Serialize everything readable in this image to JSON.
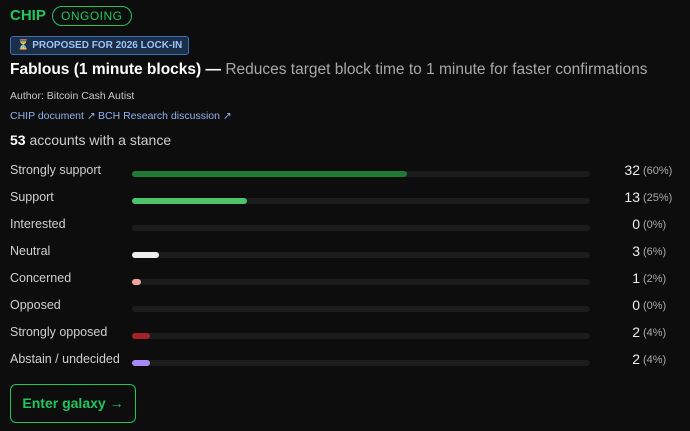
{
  "header": {
    "tag": "CHIP",
    "status": "ONGOING"
  },
  "badge": "⏳ PROPOSED FOR 2026 LOCK-IN",
  "title": {
    "name": "Fablous (1 minute blocks)",
    "separator": "—",
    "description": "Reduces target block time to 1 minute for faster confirmations"
  },
  "author": "Author: Bitcoin Cash Autist",
  "links": [
    "CHIP document ↗",
    "BCH Research discussion ↗"
  ],
  "summary": {
    "count": 53,
    "text": "accounts with a stance"
  },
  "stances": [
    {
      "label": "Strongly support",
      "count": 32,
      "percent": 60,
      "percent_label": "(60%)",
      "color": "#1f7a35"
    },
    {
      "label": "Support",
      "count": 13,
      "percent": 25,
      "percent_label": "(25%)",
      "color": "#4cc26a"
    },
    {
      "label": "Interested",
      "count": 0,
      "percent": 0,
      "percent_label": "(0%)"
    },
    {
      "label": "Neutral",
      "count": 3,
      "percent": 6,
      "percent_label": "(6%)",
      "color": "#eeeeee"
    },
    {
      "label": "Concerned",
      "count": 1,
      "percent": 2,
      "percent_label": "(2%)",
      "color": "#f0a3a3"
    },
    {
      "label": "Opposed",
      "count": 0,
      "percent": 0,
      "percent_label": "(0%)"
    },
    {
      "label": "Strongly opposed",
      "count": 2,
      "percent": 4,
      "percent_label": "(4%)",
      "color": "#a3222a"
    },
    {
      "label": "Abstain / undecided",
      "count": 2,
      "percent": 4,
      "percent_label": "(4%)",
      "color": "#a78bfa"
    }
  ],
  "button": "Enter galaxy →"
}
